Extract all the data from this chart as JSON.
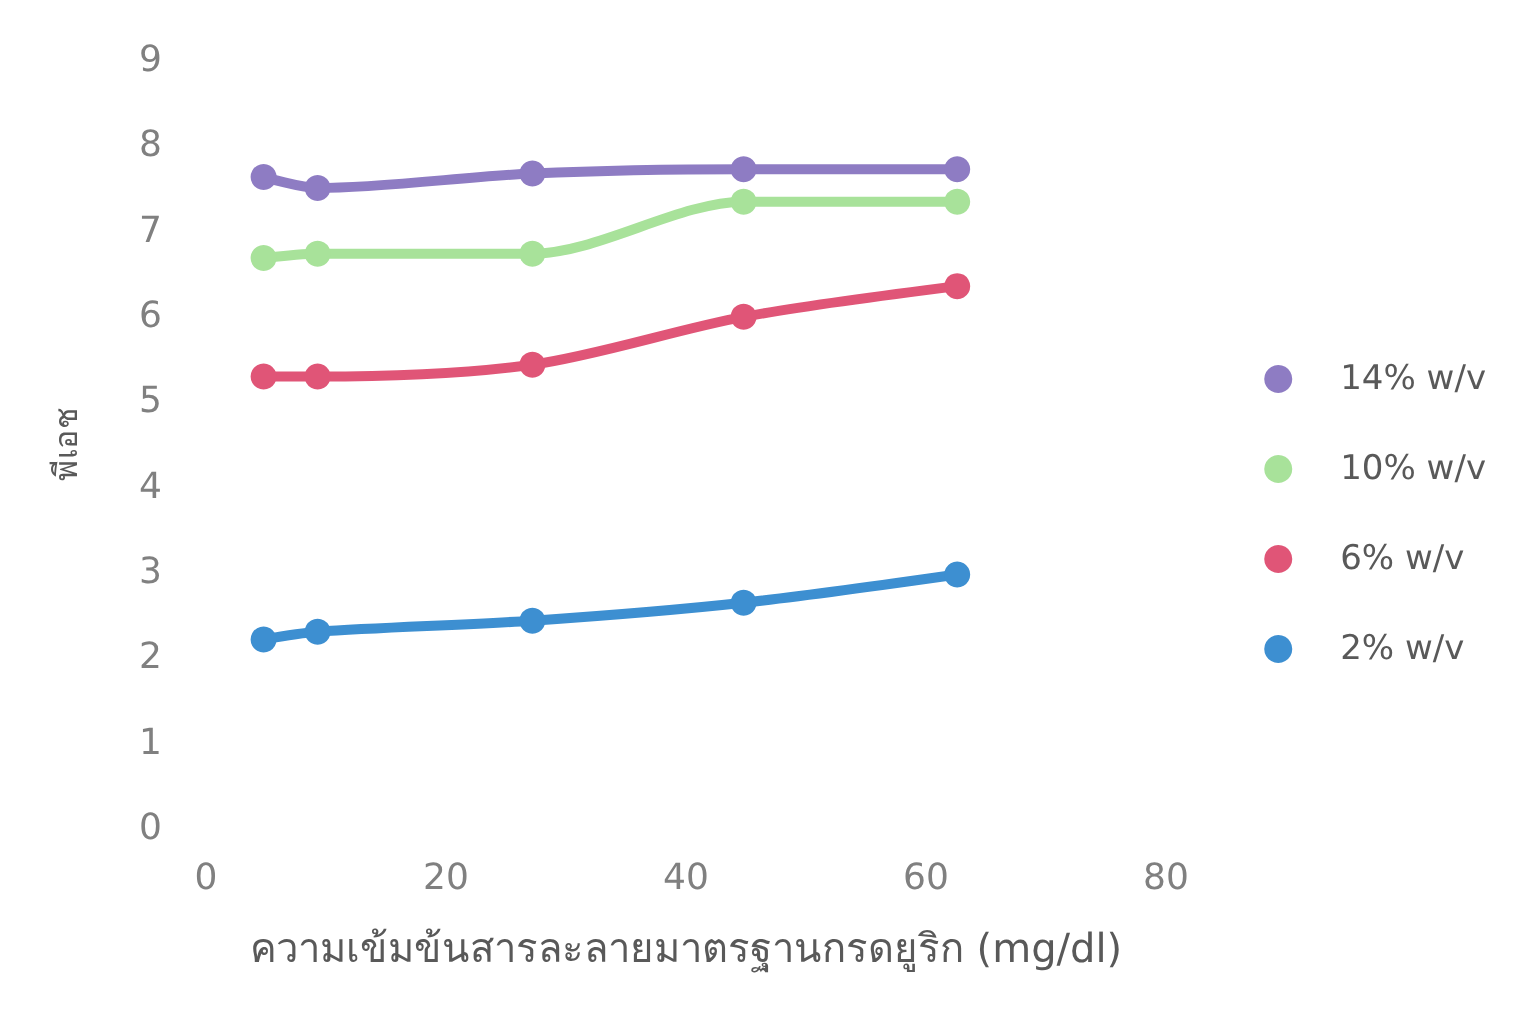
{
  "chart_data": {
    "type": "line",
    "xlabel": "ความเข้มข้นสารละลายมาตรฐานกรดยูริก (mg/dl)",
    "ylabel": "พีเอช",
    "x": [
      4.8,
      9.3,
      27.2,
      44.8,
      62.6
    ],
    "series": [
      {
        "name": "14% w/v",
        "color": "#8e7cc3",
        "values": [
          7.63,
          7.5,
          7.67,
          7.72,
          7.72
        ]
      },
      {
        "name": "10% w/v",
        "color": "#a8e29a",
        "values": [
          6.68,
          6.73,
          6.73,
          7.34,
          7.34
        ]
      },
      {
        "name": "6% w/v",
        "color": "#e05577",
        "values": [
          5.29,
          5.29,
          5.43,
          5.99,
          6.35
        ]
      },
      {
        "name": "2% w/v",
        "color": "#3d8fd1",
        "values": [
          2.21,
          2.3,
          2.43,
          2.64,
          2.97
        ]
      }
    ],
    "xlim": [
      0,
      80
    ],
    "xticks": [
      0,
      20,
      40,
      60,
      80
    ],
    "ylim": [
      0,
      9
    ],
    "yticks": [
      0,
      1,
      2,
      3,
      4,
      5,
      6,
      7,
      8,
      9
    ],
    "grid": false,
    "legend": "right",
    "marker": "circle",
    "line_style": "solid"
  }
}
